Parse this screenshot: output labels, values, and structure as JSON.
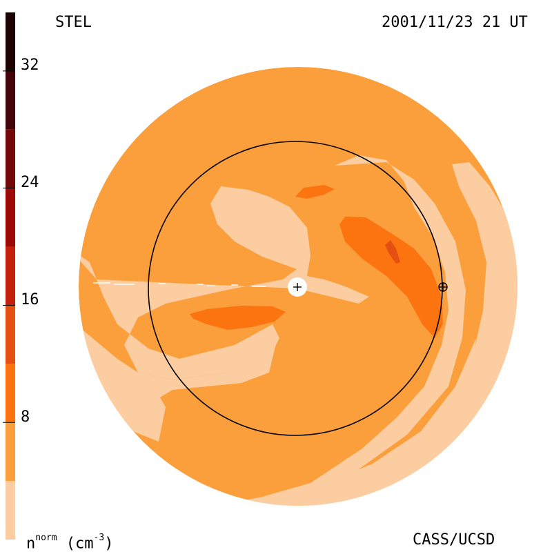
{
  "header": {
    "left_label": "STEL",
    "right_label": "2001/11/23 21 UT"
  },
  "footer": {
    "unit_base": "n",
    "unit_superscript": "norm",
    "unit_suffix": " (cm",
    "unit_exponent": "-3",
    "unit_close": ")",
    "credit": "CASS/UCSD"
  },
  "colorbar": {
    "tick_labels": [
      "32",
      "24",
      "16",
      "8"
    ],
    "tick_values": [
      32,
      24,
      16,
      8
    ],
    "range": [
      0,
      36
    ],
    "levels": [
      {
        "min": 0,
        "max": 4,
        "color": "#fccda0"
      },
      {
        "min": 4,
        "max": 8,
        "color": "#fa9f3c"
      },
      {
        "min": 8,
        "max": 12,
        "color": "#fc7410"
      },
      {
        "min": 12,
        "max": 16,
        "color": "#e45012"
      },
      {
        "min": 16,
        "max": 20,
        "color": "#c2200c"
      },
      {
        "min": 20,
        "max": 24,
        "color": "#9c0a08"
      },
      {
        "min": 24,
        "max": 28,
        "color": "#720808"
      },
      {
        "min": 28,
        "max": 32,
        "color": "#420408"
      },
      {
        "min": 32,
        "max": 36,
        "color": "#1c0404"
      }
    ]
  },
  "colors": {
    "light": "#fccda0",
    "medium": "#fa9f3c",
    "dark": "#fc7410",
    "darkest": "#e45012",
    "outline": "#000000"
  }
}
